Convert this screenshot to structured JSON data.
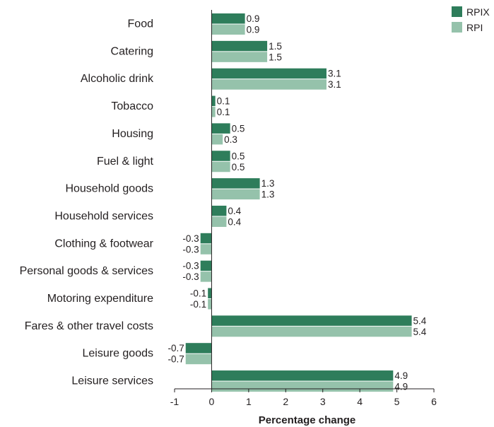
{
  "chart_data": {
    "type": "bar",
    "orientation": "horizontal",
    "categories": [
      "Food",
      "Catering",
      "Alcoholic drink",
      "Tobacco",
      "Housing",
      "Fuel & light",
      "Household goods",
      "Household services",
      "Clothing & footwear",
      "Personal goods & services",
      "Motoring expenditure",
      "Fares & other travel costs",
      "Leisure goods",
      "Leisure services"
    ],
    "series": [
      {
        "name": "RPIX",
        "color": "#2e7d5b",
        "values": [
          0.9,
          1.5,
          3.1,
          0.1,
          0.5,
          0.5,
          1.3,
          0.4,
          -0.3,
          -0.3,
          -0.1,
          5.4,
          -0.7,
          4.9
        ]
      },
      {
        "name": "RPI",
        "color": "#95c2ab",
        "values": [
          0.9,
          1.5,
          3.1,
          0.1,
          0.3,
          0.5,
          1.3,
          0.4,
          -0.3,
          -0.3,
          -0.1,
          5.4,
          -0.7,
          4.9
        ]
      }
    ],
    "xlabel": "Percentage change",
    "xlim": [
      -1,
      6
    ],
    "xticks": [
      "-1",
      "0",
      "1",
      "2",
      "3",
      "4",
      "5",
      "6"
    ],
    "grid": false,
    "legend_position": "top-right"
  }
}
